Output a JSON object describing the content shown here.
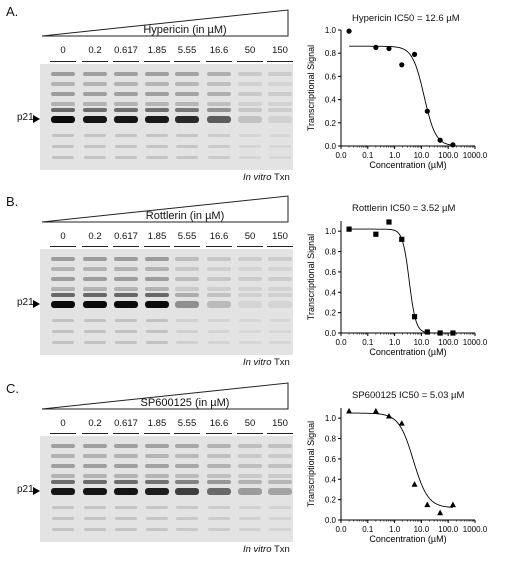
{
  "lanes": [
    "0",
    "0.2",
    "0.617",
    "1.85",
    "5.55",
    "16.6",
    "50",
    "150"
  ],
  "p21_label": "p21",
  "txn_label_em": "In vitro",
  "txn_label_rest": " Txn",
  "axis": {
    "ylabel": "Transcriptional Signal",
    "xlabel": "Concentration (µM)",
    "yticks": [
      "0.0",
      "0.2",
      "0.4",
      "0.6",
      "0.8",
      "1.0"
    ],
    "xticks": [
      "0.0",
      "0.1",
      "1.0",
      "10.0",
      "100.0",
      "1000.0"
    ]
  },
  "panels": [
    {
      "letter": "A.",
      "compound_title": "Hypericin (in µM)",
      "chart_title": "Hypericin IC50 = 12.6 µM",
      "band_intensity": [
        1.0,
        0.95,
        0.95,
        0.93,
        0.85,
        0.6,
        0.1,
        0.03
      ]
    },
    {
      "letter": "B.",
      "compound_title": "Rottlerin (in µM)",
      "chart_title": "Rottlerin IC50 = 3.52 µM",
      "band_intensity": [
        1.0,
        1.0,
        1.0,
        1.0,
        0.35,
        0.15,
        0.02,
        0.02
      ]
    },
    {
      "letter": "C.",
      "compound_title": "SP600125 (in µM)",
      "chart_title": "SP600125 IC50 = 5.03 µM",
      "band_intensity": [
        0.95,
        0.95,
        0.95,
        0.9,
        0.75,
        0.55,
        0.3,
        0.25
      ]
    }
  ],
  "chart_data": [
    {
      "type": "scatter",
      "title": "Hypericin IC50 = 12.6 µM",
      "xlabel": "Concentration (µM)",
      "ylabel": "Transcriptional Signal",
      "xscale": "log",
      "xlim": [
        0.01,
        1000
      ],
      "ylim": [
        0,
        1.0
      ],
      "marker": "circle",
      "x": [
        0.02,
        0.2,
        0.617,
        1.85,
        5.55,
        16.6,
        50,
        150
      ],
      "y": [
        0.99,
        0.85,
        0.84,
        0.7,
        0.79,
        0.3,
        0.05,
        0.01
      ],
      "fit": {
        "ic50": 12.6,
        "top": 0.86,
        "bottom": 0.0,
        "hill": 2.0
      }
    },
    {
      "type": "scatter",
      "title": "Rottlerin IC50 = 3.52 µM",
      "xlabel": "Concentration (µM)",
      "ylabel": "Transcriptional Signal",
      "xscale": "log",
      "xlim": [
        0.01,
        1000
      ],
      "ylim": [
        0,
        1.1
      ],
      "marker": "square",
      "x": [
        0.02,
        0.2,
        0.617,
        1.85,
        5.55,
        16.6,
        50,
        150
      ],
      "y": [
        1.02,
        0.97,
        1.09,
        0.92,
        0.16,
        0.01,
        0.0,
        0.0
      ],
      "fit": {
        "ic50": 3.52,
        "top": 1.02,
        "bottom": 0.0,
        "hill": 3.5
      }
    },
    {
      "type": "scatter",
      "title": "SP600125 IC50 = 5.03 µM",
      "xlabel": "Concentration (µM)",
      "ylabel": "Transcriptional Signal",
      "xscale": "log",
      "xlim": [
        0.01,
        1000
      ],
      "ylim": [
        0,
        1.1
      ],
      "marker": "triangle",
      "x": [
        0.02,
        0.2,
        0.617,
        1.85,
        5.55,
        16.6,
        50,
        150
      ],
      "y": [
        1.07,
        1.07,
        1.02,
        0.95,
        0.35,
        0.15,
        0.07,
        0.15
      ],
      "fit": {
        "ic50": 5.03,
        "top": 1.05,
        "bottom": 0.12,
        "hill": 1.6
      }
    }
  ]
}
